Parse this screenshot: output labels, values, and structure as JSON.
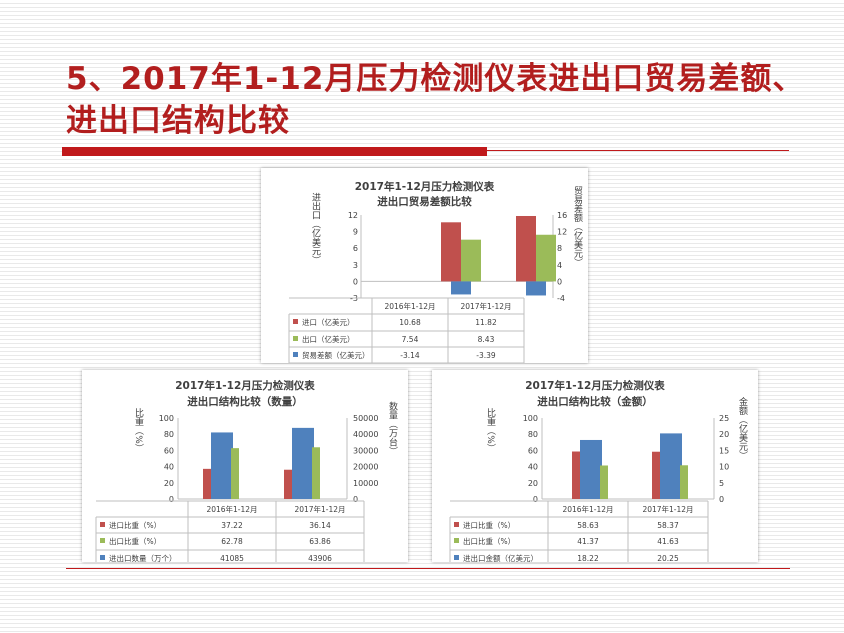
{
  "slide": {
    "title_line1": "5、2017年1-12月压力检测仪表进出口贸易差额、",
    "title_line2": "进出口结构比较"
  },
  "colors": {
    "import": "#c0504d",
    "export": "#9bbb59",
    "third": "#4f81bd",
    "accent": "#c0191b"
  },
  "chart_data": [
    {
      "type": "bar",
      "title_line1": "2017年1-12月压力检测仪表",
      "title_line2": "进出口贸易差额比较",
      "categories": [
        "2016年1-12月",
        "2017年1-12月"
      ],
      "series": [
        {
          "name": "进口（亿美元）",
          "values": [
            10.68,
            11.82
          ],
          "axis": "left",
          "color": "#c0504d"
        },
        {
          "name": "出口（亿美元）",
          "values": [
            7.54,
            8.43
          ],
          "axis": "left",
          "color": "#9bbb59"
        },
        {
          "name": "贸易差额（亿美元）",
          "values": [
            -3.14,
            -3.39
          ],
          "axis": "right",
          "color": "#4f81bd"
        }
      ],
      "table_values": [
        [
          "10.68",
          "11.82"
        ],
        [
          "7.54",
          "8.43"
        ],
        [
          "-3.14",
          "-3.39"
        ]
      ],
      "ylabel": "进出口（亿美元）",
      "y2label": "贸易差额（亿美元）",
      "ylim": [
        -3,
        12
      ],
      "yticks": [
        "12",
        "9",
        "6",
        "3",
        "0",
        "-3"
      ],
      "y2lim": [
        -4,
        16
      ],
      "y2ticks": [
        "16",
        "12",
        "8",
        "4",
        "0",
        "-4"
      ]
    },
    {
      "type": "bar",
      "title_line1": "2017年1-12月压力检测仪表",
      "title_line2": "进出口结构比较（数量）",
      "categories": [
        "2016年1-12月",
        "2017年1-12月"
      ],
      "series": [
        {
          "name": "进口比重（%）",
          "values": [
            37.22,
            36.14
          ],
          "axis": "left",
          "color": "#c0504d"
        },
        {
          "name": "出口比重（%）",
          "values": [
            62.78,
            63.86
          ],
          "axis": "left",
          "color": "#9bbb59"
        },
        {
          "name": "进出口数量（万个）",
          "values": [
            41085,
            43906
          ],
          "axis": "right",
          "color": "#4f81bd"
        }
      ],
      "table_values": [
        [
          "37.22",
          "36.14"
        ],
        [
          "62.78",
          "63.86"
        ],
        [
          "41085",
          "43906"
        ]
      ],
      "ylabel": "比重（%）",
      "y2label": "数量（万台）",
      "ylim": [
        0,
        100
      ],
      "yticks": [
        "100",
        "80",
        "60",
        "40",
        "20",
        "0"
      ],
      "y2lim": [
        0,
        50000
      ],
      "y2ticks": [
        "50000",
        "40000",
        "30000",
        "20000",
        "10000",
        "0"
      ]
    },
    {
      "type": "bar",
      "title_line1": "2017年1-12月压力检测仪表",
      "title_line2": "进出口结构比较（金额）",
      "categories": [
        "2016年1-12月",
        "2017年1-12月"
      ],
      "series": [
        {
          "name": "进口比重（%）",
          "values": [
            58.63,
            58.37
          ],
          "axis": "left",
          "color": "#c0504d"
        },
        {
          "name": "出口比重（%）",
          "values": [
            41.37,
            41.63
          ],
          "axis": "left",
          "color": "#9bbb59"
        },
        {
          "name": "进出口金额（亿美元）",
          "values": [
            18.22,
            20.25
          ],
          "axis": "right",
          "color": "#4f81bd"
        }
      ],
      "table_values": [
        [
          "58.63",
          "58.37"
        ],
        [
          "41.37",
          "41.63"
        ],
        [
          "18.22",
          "20.25"
        ]
      ],
      "ylabel": "比重（%）",
      "y2label": "金额（亿美元）",
      "ylim": [
        0,
        100
      ],
      "yticks": [
        "100",
        "80",
        "60",
        "40",
        "20",
        "0"
      ],
      "y2lim": [
        0,
        25
      ],
      "y2ticks": [
        "25",
        "20",
        "15",
        "10",
        "5",
        "0"
      ]
    }
  ]
}
